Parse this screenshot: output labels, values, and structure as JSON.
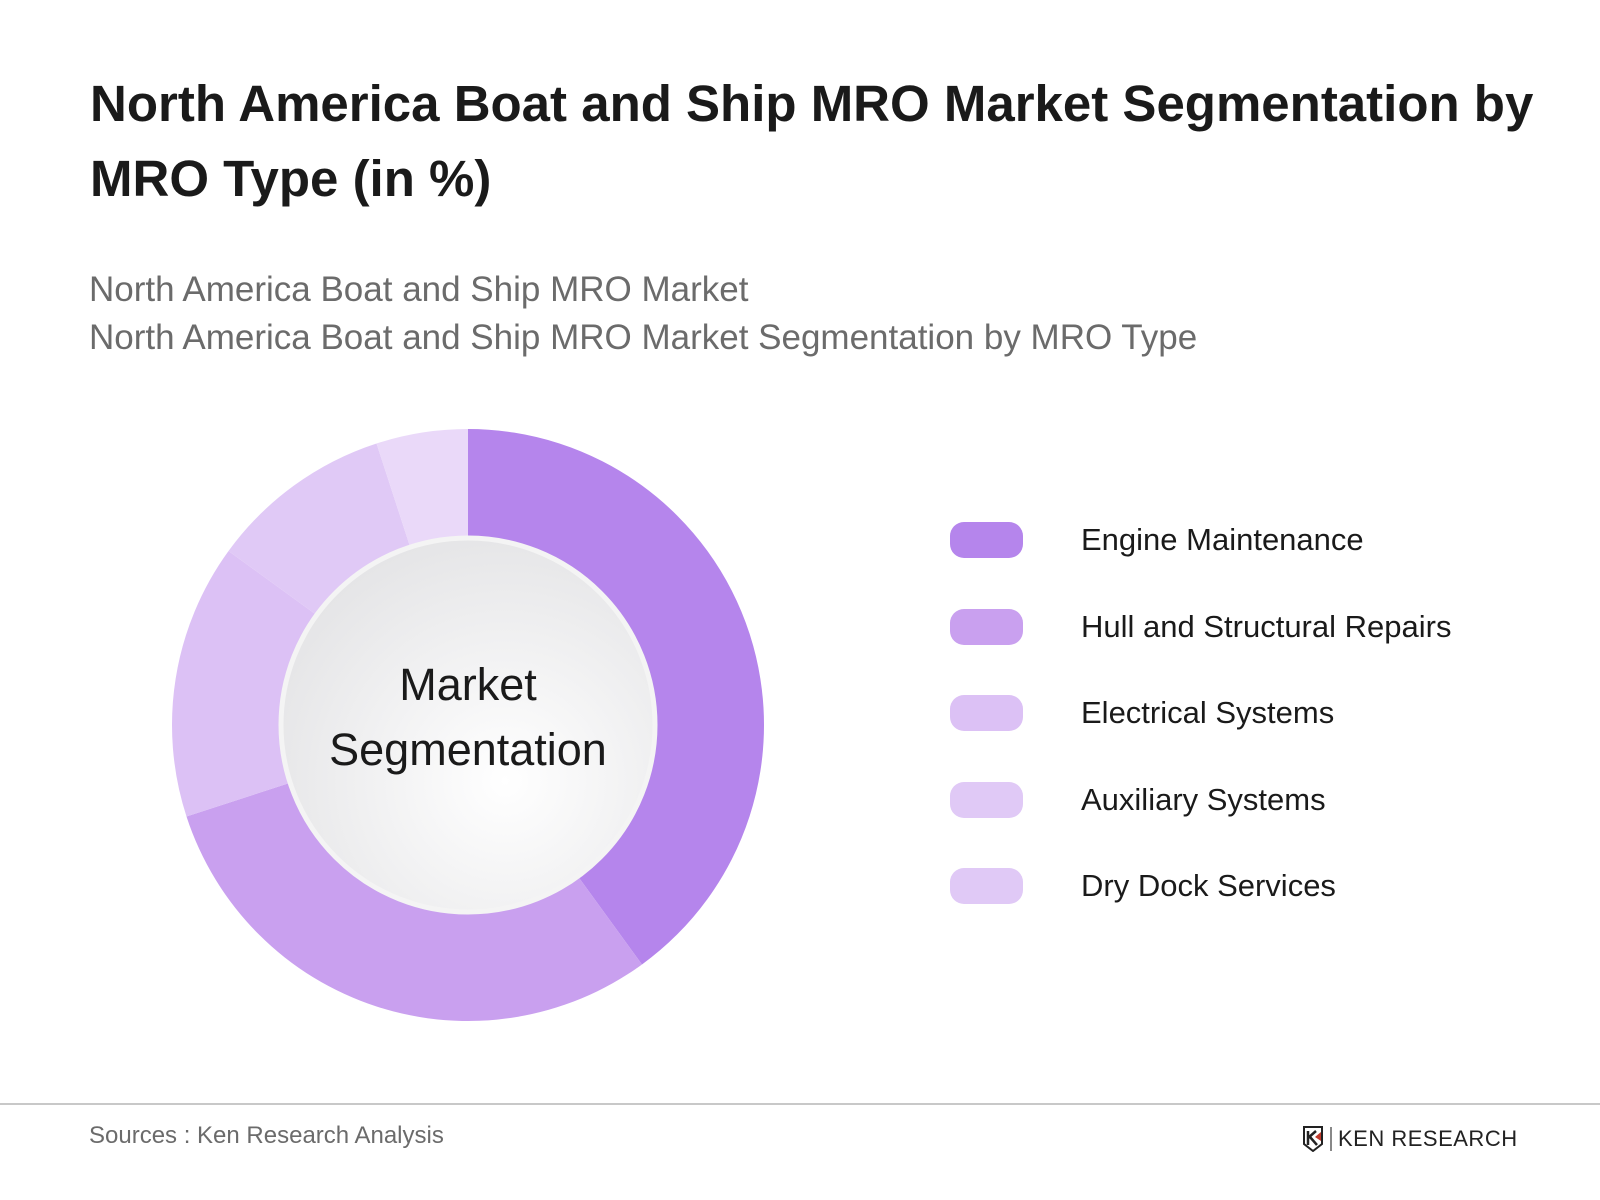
{
  "title": "North America Boat and Ship MRO Market Segmentation by MRO Type (in %)",
  "subtitle_lines": [
    "North America Boat and Ship MRO Market",
    "North America Boat and Ship MRO Market Segmentation by MRO Type"
  ],
  "center_label": [
    "Market",
    "Segmentation"
  ],
  "footer": {
    "source": "Sources : Ken Research Analysis",
    "logo": "KEN RESEARCH"
  },
  "chart_data": {
    "type": "pie",
    "variant": "donut",
    "title": "North America Boat and Ship MRO Market Segmentation by MRO Type (in %)",
    "categories": [
      "Engine Maintenance",
      "Hull and Structural Repairs",
      "Electrical Systems",
      "Auxiliary Systems",
      "Dry Dock Services"
    ],
    "values": [
      40,
      30,
      15,
      10,
      5
    ],
    "colors": [
      "#b585ec",
      "#c9a0ef",
      "#dcc1f5",
      "#e0c9f6",
      "#ead9f9"
    ],
    "legend_colors": [
      "#b585ec",
      "#c9a0ef",
      "#dcc1f5",
      "#e0c9f6",
      "#e0c9f6"
    ],
    "legend_position": "right",
    "start": "top, clockwise"
  }
}
